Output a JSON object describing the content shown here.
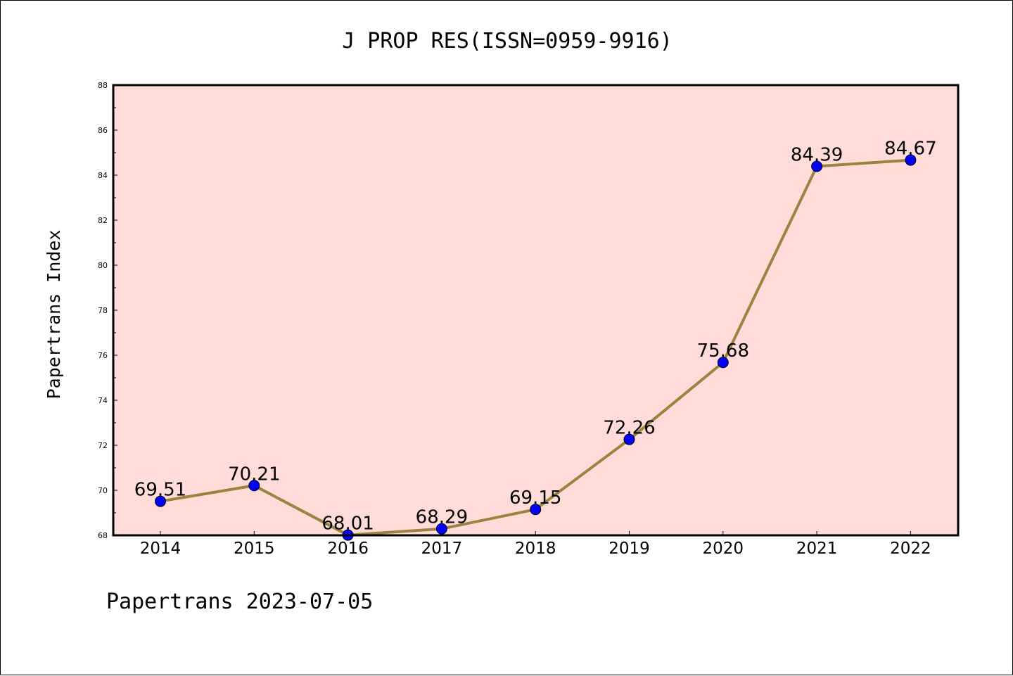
{
  "chart_data": {
    "type": "line",
    "title": "J PROP RES(ISSN=0959-9916)",
    "ylabel": "Papertrans Index",
    "xlabel": "",
    "footer": "Papertrans 2023-07-05",
    "categories": [
      "2014",
      "2015",
      "2016",
      "2017",
      "2018",
      "2019",
      "2020",
      "2021",
      "2022"
    ],
    "series": [
      {
        "values": [
          69.51,
          70.21,
          68.01,
          68.29,
          69.15,
          72.26,
          75.68,
          84.39,
          84.67
        ],
        "data_labels": [
          "69.51",
          "70.21",
          "68.01",
          "68.29",
          "69.15",
          "72.26",
          "75.68",
          "84.39",
          "84.67"
        ]
      }
    ],
    "ylim": [
      68,
      88
    ],
    "yticks": [
      "68",
      "70",
      "72",
      "74",
      "76",
      "78",
      "80",
      "82",
      "84",
      "86",
      "88"
    ],
    "grid": false,
    "legend": "none",
    "colors": {
      "plot_background": "#FFDCDA",
      "line": "#9A8540",
      "marker": "#0000FF",
      "axis": "#000000"
    }
  }
}
